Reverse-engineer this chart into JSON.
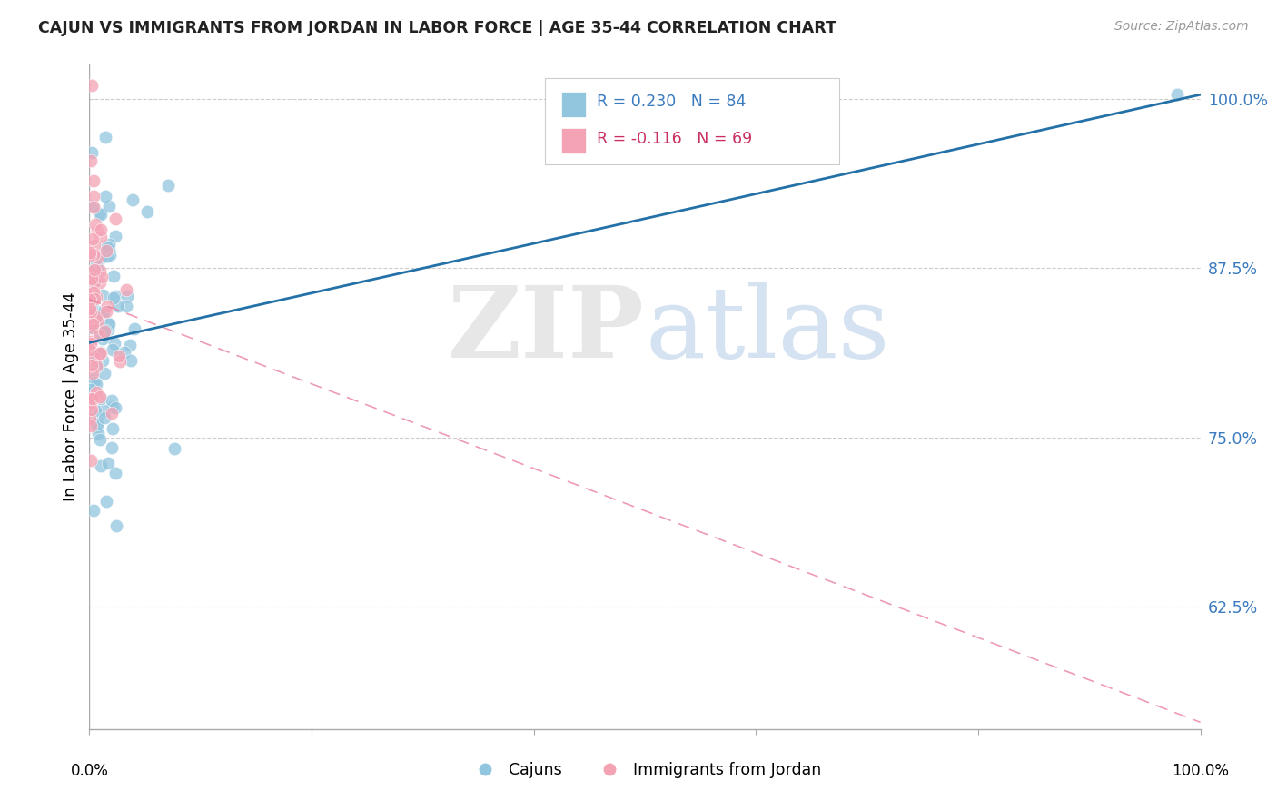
{
  "title": "CAJUN VS IMMIGRANTS FROM JORDAN IN LABOR FORCE | AGE 35-44 CORRELATION CHART",
  "source": "Source: ZipAtlas.com",
  "ylabel": "In Labor Force | Age 35-44",
  "watermark_zip": "ZIP",
  "watermark_atlas": "atlas",
  "blue_color": "#92c5de",
  "pink_color": "#f4a3b5",
  "blue_line_color": "#2471a8",
  "pink_line_color": "#e87a9a",
  "R_cajun": 0.23,
  "N_cajun": 84,
  "R_jordan": -0.116,
  "N_jordan": 69,
  "xlim": [
    0.0,
    1.0
  ],
  "ylim": [
    0.535,
    1.025
  ],
  "yticks": [
    0.625,
    0.75,
    0.875,
    1.0
  ],
  "ytick_labels": [
    "62.5%",
    "75.0%",
    "87.5%",
    "100.0%"
  ],
  "blue_line_x0": 0.0,
  "blue_line_x1": 1.0,
  "blue_line_y0": 0.82,
  "blue_line_y1": 1.003,
  "pink_line_x0": 0.0,
  "pink_line_x1": 1.0,
  "pink_line_y0": 0.852,
  "pink_line_y1": 0.54
}
